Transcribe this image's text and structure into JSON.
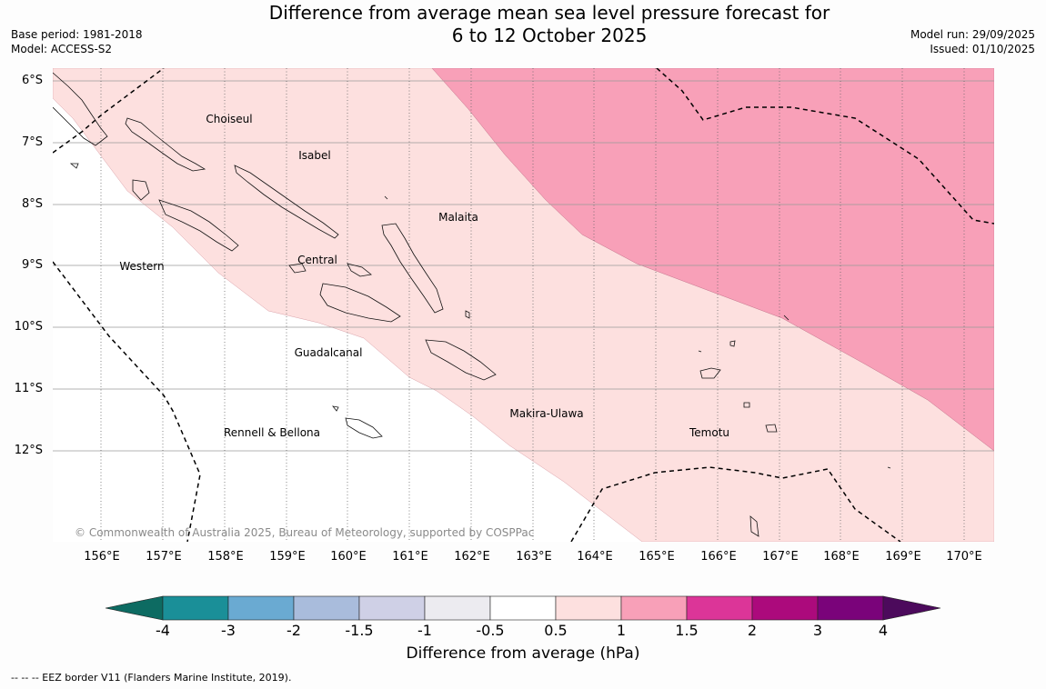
{
  "title_line1": "Difference from average mean sea level pressure forecast for",
  "title_line2": "6 to 12 October 2025",
  "meta_left": {
    "base_period": "Base period: 1981-2018",
    "model": "Model: ACCESS-S2"
  },
  "meta_right": {
    "model_run": "Model run: 29/09/2025",
    "issued": "Issued: 01/10/2025"
  },
  "lat_labels": [
    "6°S",
    "7°S",
    "8°S",
    "9°S",
    "10°S",
    "11°S",
    "12°S"
  ],
  "lon_labels": [
    "156°E",
    "157°E",
    "158°E",
    "159°E",
    "160°E",
    "161°E",
    "162°E",
    "163°E",
    "164°E",
    "165°E",
    "166°E",
    "167°E",
    "168°E",
    "169°E",
    "170°E"
  ],
  "regions": {
    "choiseul": "Choiseul",
    "isabel": "Isabel",
    "malaita": "Malaita",
    "western": "Western",
    "central": "Central",
    "guadalcanal": "Guadalcanal",
    "makira": "Makira-Ulawa",
    "temotu": "Temotu",
    "rennell": "Rennell & Bellona"
  },
  "copyright": "© Commonwealth of Australia 2025, Bureau of Meteorology, supported by COSPPac",
  "colorbar": {
    "ticks": [
      "-4",
      "-3",
      "-2",
      "-1.5",
      "-1",
      "-0.5",
      "0.5",
      "1",
      "1.5",
      "2",
      "3",
      "4"
    ],
    "colors": [
      "#1a8f98",
      "#6aaad2",
      "#a9bcdc",
      "#cfd0e6",
      "#ecebf0",
      "#ffffff",
      "#fde0df",
      "#f8a0b8",
      "#dc3598",
      "#ac0a7c",
      "#7a037a"
    ],
    "extend_low_color": "#0d6b62",
    "extend_high_color": "#4c0a5c",
    "label": "Difference from average (hPa)"
  },
  "legend_footnote": "--  --  -- EEZ border V11 (Flanders Marine Institute, 2019)."
}
